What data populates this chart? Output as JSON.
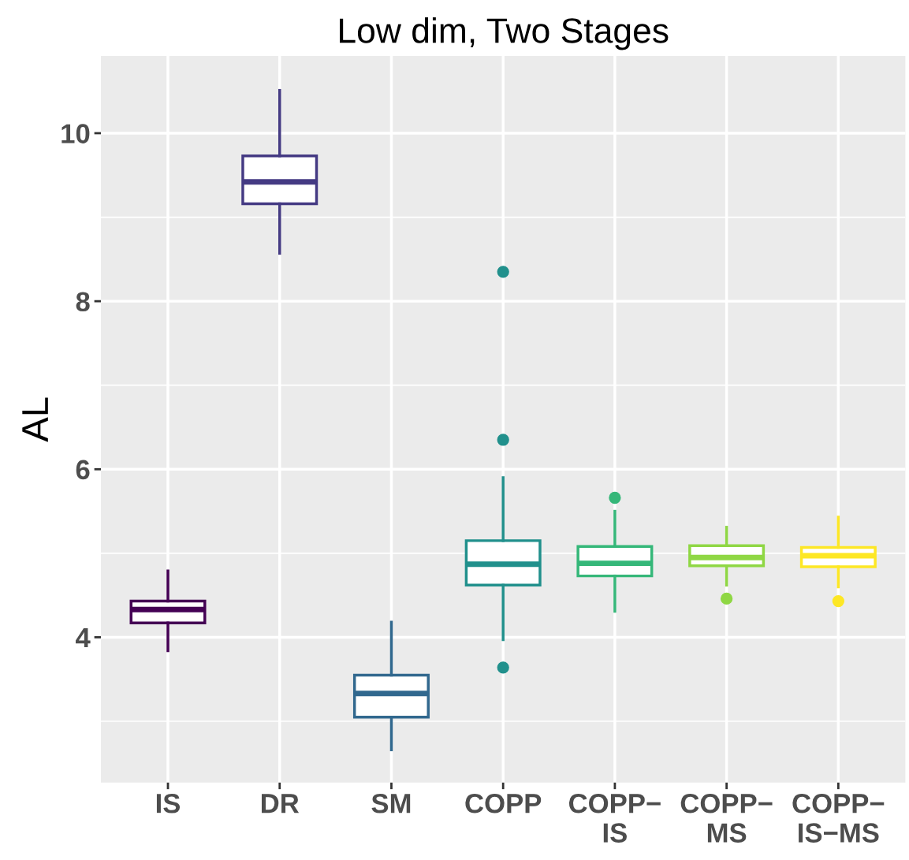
{
  "chart_data": {
    "type": "box",
    "title": "Low dim, Two Stages",
    "ylabel": "AL",
    "categories": [
      "IS",
      "DR",
      "SM",
      "COPP",
      "COPP−\nIS",
      "COPP−\nMS",
      "COPP−\nIS−MS"
    ],
    "colors": [
      "#440154",
      "#443a83",
      "#31688e",
      "#21908c",
      "#35b779",
      "#8fd744",
      "#fde725"
    ],
    "boxes": [
      {
        "low": 3.84,
        "q1": 4.17,
        "median": 4.33,
        "q3": 4.43,
        "high": 4.79
      },
      {
        "low": 8.57,
        "q1": 9.16,
        "median": 9.42,
        "q3": 9.73,
        "high": 10.51
      },
      {
        "low": 2.66,
        "q1": 3.05,
        "median": 3.33,
        "q3": 3.55,
        "high": 4.18
      },
      {
        "low": 3.97,
        "q1": 4.62,
        "median": 4.87,
        "q3": 5.15,
        "high": 5.9,
        "outliers": [
          8.35,
          6.35,
          3.64
        ]
      },
      {
        "low": 4.31,
        "q1": 4.73,
        "median": 4.88,
        "q3": 5.08,
        "high": 5.5,
        "outliers": [
          5.66
        ]
      },
      {
        "low": 4.62,
        "q1": 4.85,
        "median": 4.95,
        "q3": 5.09,
        "high": 5.31,
        "outliers": [
          4.46
        ]
      },
      {
        "low": 4.6,
        "q1": 4.84,
        "median": 4.97,
        "q3": 5.07,
        "high": 5.43,
        "outliers": [
          4.43
        ]
      }
    ],
    "ylim": [
      2.27,
      10.92
    ],
    "yticks": [
      4,
      6,
      8,
      10
    ],
    "grid": true
  }
}
